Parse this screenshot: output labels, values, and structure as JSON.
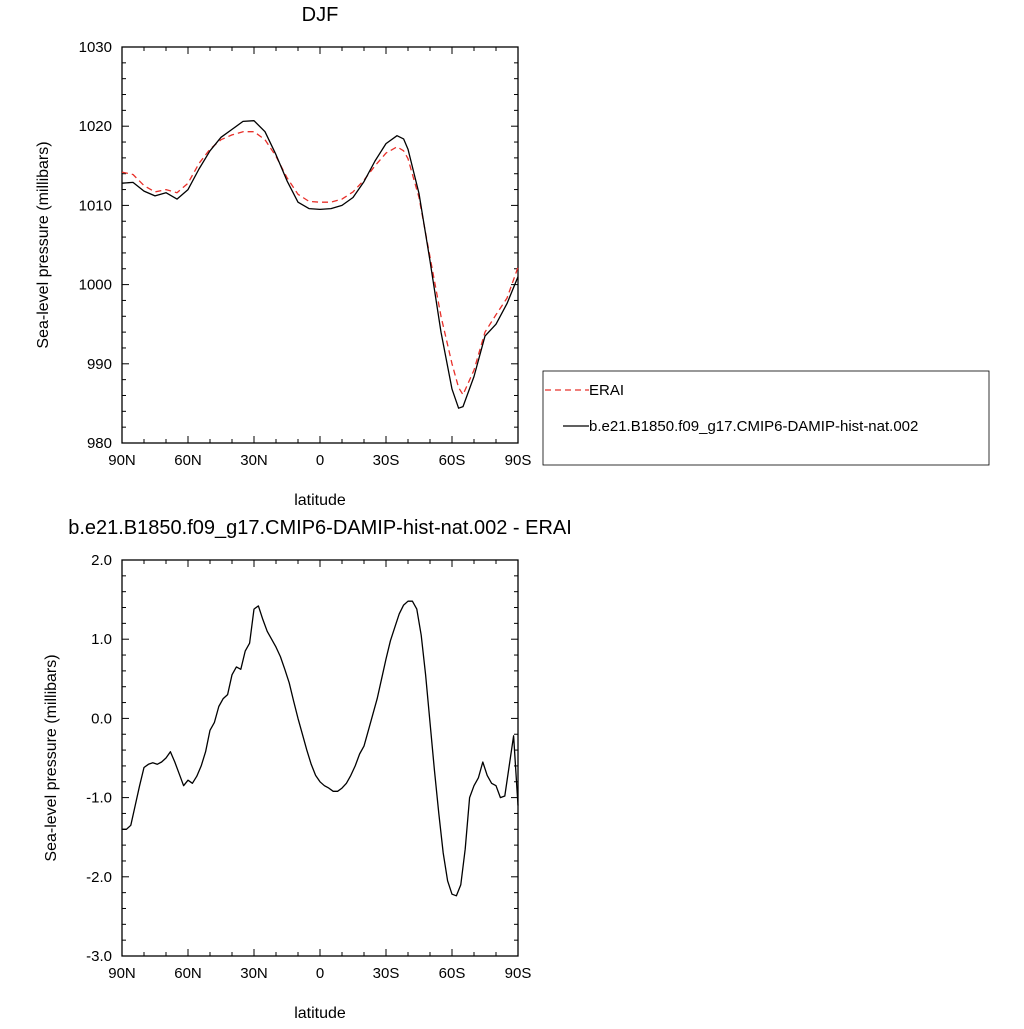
{
  "chart_data": [
    {
      "type": "line",
      "title": "DJF",
      "xlabel": "latitude",
      "ylabel": "Sea-level pressure (millibars)",
      "xlim": [
        90,
        -90
      ],
      "ylim": [
        980,
        1030
      ],
      "x_ticks": [
        90,
        60,
        30,
        0,
        -30,
        -60,
        -90
      ],
      "x_tick_labels": [
        "90N",
        "60N",
        "30N",
        "0",
        "30S",
        "60S",
        "90S"
      ],
      "y_ticks": [
        980,
        990,
        1000,
        1010,
        1020,
        1030
      ],
      "y_tick_labels": [
        "980",
        "990",
        "1000",
        "1010",
        "1020",
        "1030"
      ],
      "grid": false,
      "legend_position": "right",
      "series": [
        {
          "name": "ERAI",
          "color": "#e8302a",
          "dash": "dashed",
          "x": [
            90,
            85,
            80,
            75,
            70,
            65,
            60,
            55,
            50,
            45,
            40,
            35,
            30,
            25,
            20,
            15,
            10,
            5,
            0,
            -5,
            -10,
            -15,
            -20,
            -25,
            -30,
            -35,
            -38,
            -40,
            -45,
            -50,
            -55,
            -60,
            -63,
            -65,
            -70,
            -75,
            -80,
            -85,
            -90
          ],
          "values": [
            1014.2,
            1013.9,
            1012.5,
            1011.7,
            1012.0,
            1011.6,
            1012.8,
            1015.3,
            1017.1,
            1018.3,
            1018.9,
            1019.3,
            1019.3,
            1018.3,
            1016.2,
            1013.5,
            1011.4,
            1010.5,
            1010.4,
            1010.4,
            1010.8,
            1011.7,
            1013.2,
            1015.0,
            1016.6,
            1017.4,
            1016.9,
            1015.9,
            1011.0,
            1003.5,
            996.0,
            990.0,
            987.0,
            986.1,
            989.2,
            994.0,
            996.2,
            998.3,
            1002.2
          ]
        },
        {
          "name": "b.e21.B1850.f09_g17.CMIP6-DAMIP-hist-nat.002",
          "color": "#000000",
          "dash": "solid",
          "x": [
            90,
            85,
            80,
            75,
            70,
            65,
            60,
            55,
            50,
            45,
            40,
            35,
            30,
            25,
            20,
            15,
            10,
            5,
            0,
            -5,
            -10,
            -15,
            -20,
            -25,
            -30,
            -35,
            -38,
            -40,
            -45,
            -50,
            -55,
            -60,
            -63,
            -65,
            -70,
            -75,
            -80,
            -85,
            -90
          ],
          "values": [
            1012.8,
            1012.9,
            1011.8,
            1011.2,
            1011.6,
            1010.8,
            1012.0,
            1014.6,
            1016.9,
            1018.6,
            1019.6,
            1020.6,
            1020.7,
            1019.3,
            1016.4,
            1013.1,
            1010.4,
            1009.6,
            1009.5,
            1009.6,
            1010.0,
            1011.0,
            1013.0,
            1015.6,
            1017.8,
            1018.8,
            1018.4,
            1017.1,
            1011.5,
            1003.0,
            994.0,
            986.8,
            984.4,
            984.6,
            988.4,
            993.5,
            995.0,
            997.6,
            1001.0
          ]
        }
      ]
    },
    {
      "type": "line",
      "title": "b.e21.B1850.f09_g17.CMIP6-DAMIP-hist-nat.002 - ERAI",
      "xlabel": "latitude",
      "ylabel": "Sea-level pressure (millibars)",
      "xlim": [
        90,
        -90
      ],
      "ylim": [
        -3.0,
        2.0
      ],
      "x_ticks": [
        90,
        60,
        30,
        0,
        -30,
        -60,
        -90
      ],
      "x_tick_labels": [
        "90N",
        "60N",
        "30N",
        "0",
        "30S",
        "60S",
        "90S"
      ],
      "y_ticks": [
        -3.0,
        -2.0,
        -1.0,
        0.0,
        1.0,
        2.0
      ],
      "y_tick_labels": [
        "-3.0",
        "-2.0",
        "-1.0",
        "0.0",
        "1.0",
        "2.0"
      ],
      "grid": false,
      "series": [
        {
          "color": "#000000",
          "dash": "solid",
          "x": [
            90,
            88,
            86,
            84,
            82,
            80,
            78,
            76,
            74,
            72,
            70,
            68,
            66,
            64,
            62,
            60,
            58,
            56,
            54,
            52,
            50,
            48,
            46,
            44,
            42,
            40,
            38,
            36,
            34,
            32,
            30,
            28,
            26,
            24,
            22,
            20,
            18,
            16,
            14,
            12,
            10,
            8,
            6,
            4,
            2,
            0,
            -2,
            -4,
            -6,
            -8,
            -10,
            -12,
            -14,
            -16,
            -18,
            -20,
            -22,
            -24,
            -26,
            -28,
            -30,
            -32,
            -34,
            -36,
            -38,
            -40,
            -42,
            -44,
            -46,
            -48,
            -50,
            -52,
            -54,
            -56,
            -58,
            -60,
            -62,
            -64,
            -66,
            -68,
            -70,
            -72,
            -74,
            -76,
            -78,
            -80,
            -82,
            -84,
            -86,
            -88,
            -90
          ],
          "values": [
            -1.4,
            -1.4,
            -1.35,
            -1.1,
            -0.85,
            -0.62,
            -0.58,
            -0.56,
            -0.58,
            -0.55,
            -0.5,
            -0.42,
            -0.55,
            -0.7,
            -0.85,
            -0.78,
            -0.82,
            -0.73,
            -0.6,
            -0.42,
            -0.15,
            -0.05,
            0.15,
            0.25,
            0.3,
            0.55,
            0.65,
            0.62,
            0.85,
            0.95,
            1.38,
            1.42,
            1.25,
            1.1,
            1.0,
            0.9,
            0.78,
            0.62,
            0.45,
            0.22,
            0.0,
            -0.2,
            -0.4,
            -0.58,
            -0.72,
            -0.8,
            -0.85,
            -0.88,
            -0.92,
            -0.92,
            -0.88,
            -0.82,
            -0.72,
            -0.6,
            -0.45,
            -0.35,
            -0.15,
            0.05,
            0.25,
            0.5,
            0.75,
            0.98,
            1.15,
            1.32,
            1.43,
            1.48,
            1.48,
            1.38,
            1.05,
            0.55,
            -0.05,
            -0.65,
            -1.2,
            -1.7,
            -2.05,
            -2.22,
            -2.24,
            -2.1,
            -1.65,
            -1.0,
            -0.85,
            -0.75,
            -0.55,
            -0.72,
            -0.82,
            -0.85,
            -1.0,
            -0.98,
            -0.6,
            -0.22,
            -1.1
          ]
        }
      ]
    }
  ]
}
